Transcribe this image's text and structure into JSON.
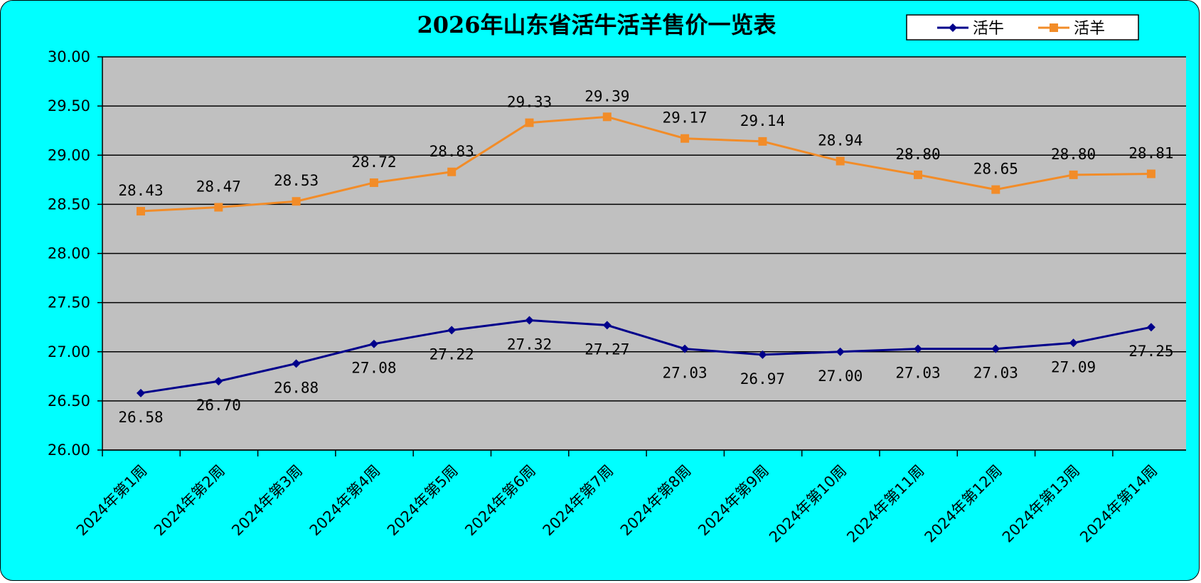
{
  "chart_data": {
    "type": "line",
    "title": "2026年山东省活牛活羊售价一览表",
    "xlabel": "",
    "ylabel": "",
    "categories": [
      "2024年第1周",
      "2024年第2周",
      "2024年第3周",
      "2024年第4周",
      "2024年第5周",
      "2024年第6周",
      "2024年第7周",
      "2024年第8周",
      "2024年第9周",
      "2024年第10周",
      "2024年第11周",
      "2024年第12周",
      "2024年第13周",
      "2024年第14周"
    ],
    "ylim": [
      26.0,
      30.0
    ],
    "yticks": [
      "26.00",
      "26.50",
      "27.00",
      "27.50",
      "28.00",
      "28.50",
      "29.00",
      "29.50",
      "30.00"
    ],
    "grid": true,
    "legend_position": "top-right",
    "series": [
      {
        "name": "活牛",
        "color": "#00008b",
        "marker": "diamond",
        "values": [
          26.58,
          26.7,
          26.88,
          27.08,
          27.22,
          27.32,
          27.27,
          27.03,
          26.97,
          27.0,
          27.03,
          27.03,
          27.09,
          27.25
        ],
        "labels": [
          "26.58",
          "26.70",
          "26.88",
          "27.08",
          "27.22",
          "27.32",
          "27.27",
          "27.03",
          "26.97",
          "27.00",
          "27.03",
          "27.03",
          "27.09",
          "27.25"
        ],
        "label_position": "below"
      },
      {
        "name": "活羊",
        "color": "#f28c28",
        "marker": "square",
        "values": [
          28.43,
          28.47,
          28.53,
          28.72,
          28.83,
          29.33,
          29.39,
          29.17,
          29.14,
          28.94,
          28.8,
          28.65,
          28.8,
          28.81
        ],
        "labels": [
          "28.43",
          "28.47",
          "28.53",
          "28.72",
          "28.83",
          "29.33",
          "29.39",
          "29.17",
          "29.14",
          "28.94",
          "28.80",
          "28.65",
          "28.80",
          "28.81"
        ],
        "label_position": "above"
      }
    ],
    "colors": {
      "background": "#00ffff",
      "plot_area": "#c0c0c0",
      "gridline": "#000000"
    }
  }
}
